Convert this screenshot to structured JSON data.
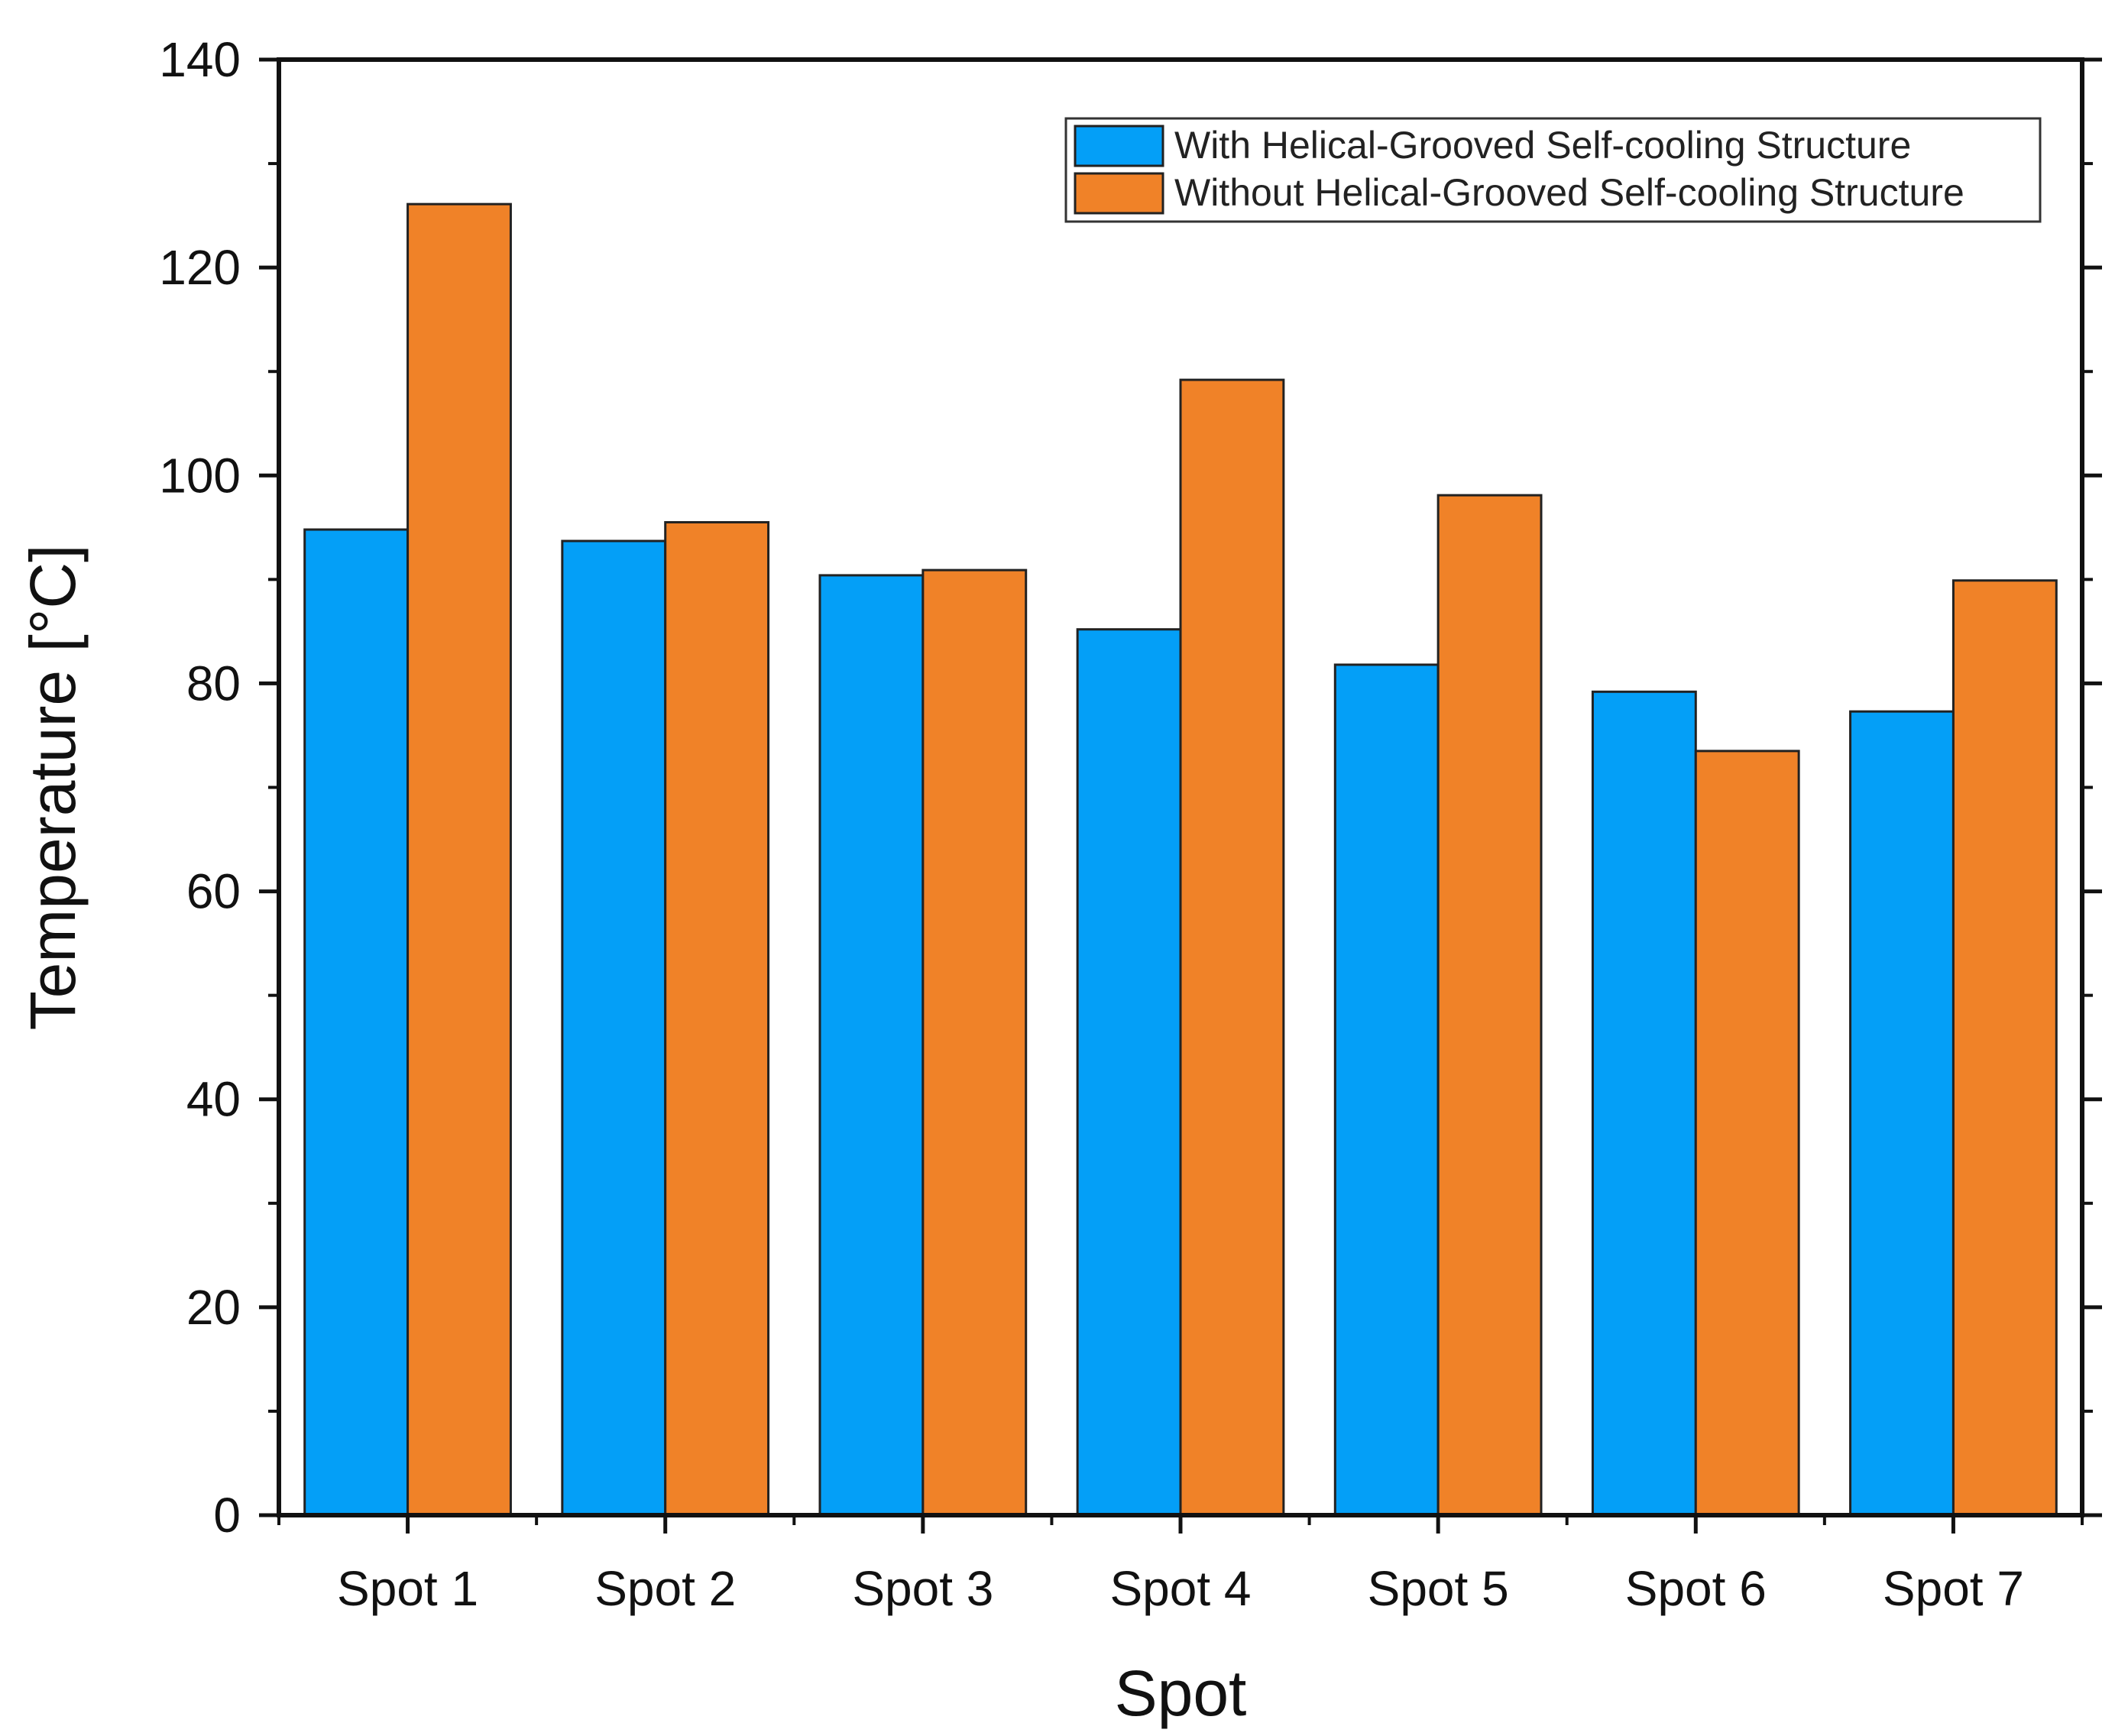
{
  "chart_data": {
    "type": "bar",
    "title": "",
    "xlabel": "Spot",
    "ylabel": "Temperature [°C]",
    "ylim": [
      0,
      140
    ],
    "yticks": [
      0,
      20,
      40,
      60,
      80,
      100,
      120,
      140
    ],
    "grid": false,
    "legend_position": "top-right",
    "categories": [
      "Spot 1",
      "Spot 2",
      "Spot 3",
      "Spot 4",
      "Spot 5",
      "Spot 6",
      "Spot 7"
    ],
    "series": [
      {
        "name": "With Helical-Grooved Self-cooling Structure",
        "color": "#049ff7",
        "values": [
          94.8,
          93.7,
          90.4,
          85.2,
          81.8,
          79.2,
          77.3
        ]
      },
      {
        "name": "Without Helical-Grooved Self-cooling Structure",
        "color": "#f08228",
        "values": [
          126.1,
          95.5,
          90.9,
          109.2,
          98.1,
          73.5,
          89.9
        ]
      }
    ]
  }
}
